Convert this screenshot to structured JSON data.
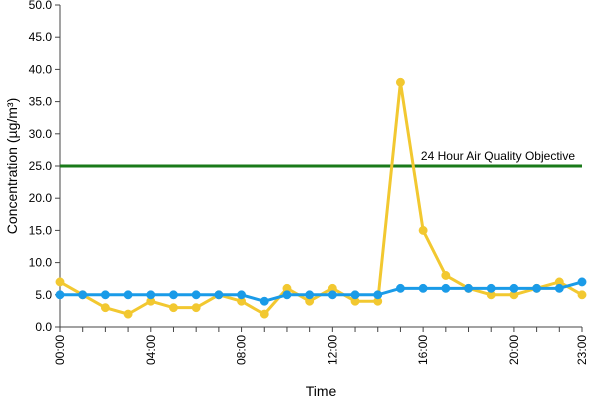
{
  "chart_data": {
    "type": "line",
    "xlabel": "Time",
    "ylabel": "Concentration (µg/m³)",
    "ylim": [
      0,
      50
    ],
    "y_ticks": [
      "0.0",
      "5.0",
      "10.0",
      "15.0",
      "20.0",
      "25.0",
      "30.0",
      "35.0",
      "40.0",
      "45.0",
      "50.0"
    ],
    "x_tick_labels": [
      "00:00",
      "04:00",
      "08:00",
      "12:00",
      "16:00",
      "20:00",
      "23:00"
    ],
    "x_hours": [
      0,
      1,
      2,
      3,
      4,
      5,
      6,
      7,
      8,
      9,
      10,
      11,
      12,
      13,
      14,
      15,
      16,
      17,
      18,
      19,
      20,
      21,
      22,
      23
    ],
    "grid": false,
    "series": [
      {
        "color": "#f2c830",
        "values": [
          7,
          5,
          3,
          2,
          4,
          3,
          3,
          5,
          4,
          2,
          6,
          4,
          6,
          4,
          4,
          38,
          15,
          8,
          6,
          5,
          5,
          6,
          7,
          5
        ]
      },
      {
        "color": "#1a9be8",
        "values": [
          5,
          5,
          5,
          5,
          5,
          5,
          5,
          5,
          5,
          4,
          5,
          5,
          5,
          5,
          5,
          6,
          6,
          6,
          6,
          6,
          6,
          6,
          6,
          7
        ]
      }
    ],
    "reference_line": {
      "value": 25,
      "label": "24 Hour Air Quality Objective",
      "color": "#1a7a1a"
    }
  }
}
